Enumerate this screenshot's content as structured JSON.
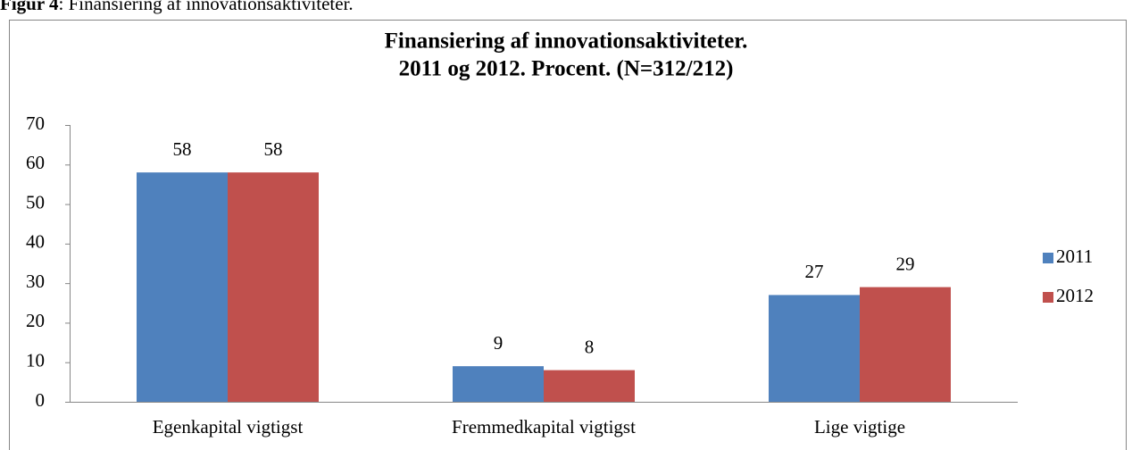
{
  "caption": {
    "label": "Figur 4",
    "text": ": Finansiering af innovationsaktiviteter."
  },
  "chart_data": {
    "type": "bar",
    "title": [
      "Finansiering af innovationsaktiviteter.",
      "2011 og 2012. Procent. (N=312/212)"
    ],
    "categories": [
      "Egenkapital vigtigst",
      "Fremmedkapital vigtigst",
      "Lige vigtige"
    ],
    "series": [
      {
        "name": "2011",
        "color": "#4f81bd",
        "values": [
          58,
          9,
          27
        ]
      },
      {
        "name": "2012",
        "color": "#c0504d",
        "values": [
          58,
          8,
          29
        ]
      }
    ],
    "ylim": [
      0,
      70
    ],
    "yticks": [
      0,
      10,
      20,
      30,
      40,
      50,
      60,
      70
    ],
    "grid": false,
    "legend": "right"
  }
}
